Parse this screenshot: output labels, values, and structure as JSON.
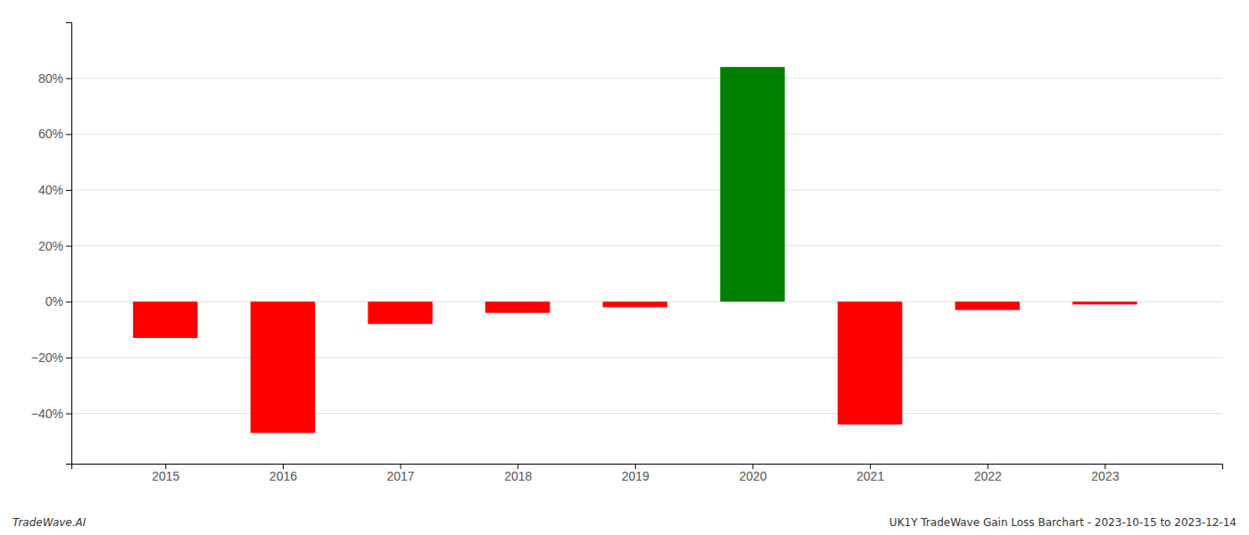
{
  "chart_data": {
    "type": "bar",
    "x": [
      2015,
      2016,
      2017,
      2018,
      2019,
      2020,
      2021,
      2022,
      2023
    ],
    "values": [
      -13.0,
      -47.0,
      -8.0,
      -4.0,
      -2.0,
      84.0,
      -44.0,
      -3.0,
      -1.0
    ],
    "colors": [
      "#ff0000",
      "#ff0000",
      "#ff0000",
      "#ff0000",
      "#ff0000",
      "#008000",
      "#ff0000",
      "#ff0000",
      "#ff0000"
    ],
    "xlim": [
      2014.2,
      2024.0
    ],
    "xticks": [
      2015,
      2016,
      2017,
      2018,
      2019,
      2020,
      2021,
      2022,
      2023
    ],
    "ylim": [
      -58,
      100
    ],
    "yticks": [
      {
        "value": -40,
        "label": "−40%"
      },
      {
        "value": -20,
        "label": "−20%"
      },
      {
        "value": 0,
        "label": "0%"
      },
      {
        "value": 20,
        "label": "20%"
      },
      {
        "value": 40,
        "label": "40%"
      },
      {
        "value": 60,
        "label": "60%"
      },
      {
        "value": 80,
        "label": "80%"
      }
    ],
    "grid": true,
    "annotations": [
      "TradeWave.AI",
      "UK1Y TradeWave Gain Loss Barchart - 2023-10-15 to 2023-12-14"
    ]
  }
}
